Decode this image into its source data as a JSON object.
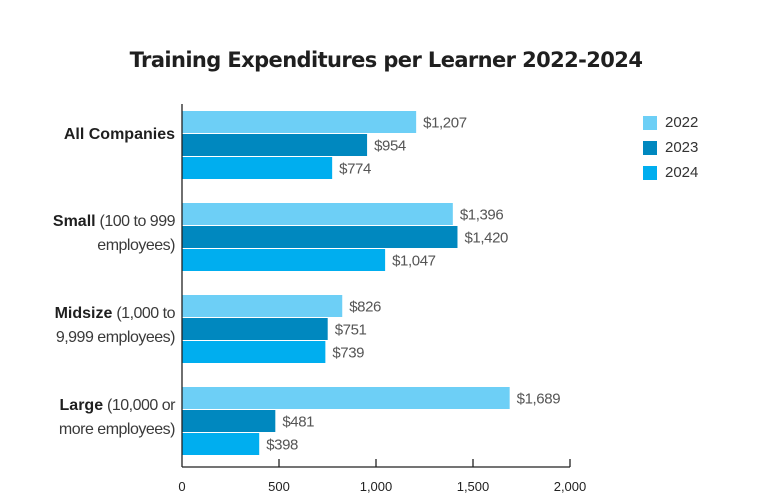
{
  "chart_data": {
    "type": "bar",
    "orientation": "horizontal",
    "title": "Training Expenditures per Learner 2022-2024",
    "categories": [
      {
        "bold": "All Companies",
        "line1_rest": "",
        "line2": ""
      },
      {
        "bold": "Small",
        "line1_rest": " (100 to 999",
        "line2": "employees)"
      },
      {
        "bold": "Midsize",
        "line1_rest": " (1,000 to",
        "line2": "9,999 employees)"
      },
      {
        "bold": "Large",
        "line1_rest": " (10,000 or",
        "line2": "more employees)"
      }
    ],
    "series": [
      {
        "name": "2022",
        "color": "#6dcff6",
        "values": [
          1207,
          1396,
          826,
          1689
        ],
        "labels": [
          "$1,207",
          "$1,396",
          "$826",
          "$1,689"
        ]
      },
      {
        "name": "2023",
        "color": "#0088bf",
        "values": [
          954,
          1420,
          751,
          481
        ],
        "labels": [
          "$954",
          "$1,420",
          "$751",
          "$481"
        ]
      },
      {
        "name": "2024",
        "color": "#00aeef",
        "values": [
          774,
          1047,
          739,
          398
        ],
        "labels": [
          "$774",
          "$1,047",
          "$739",
          "$398"
        ]
      }
    ],
    "xlim": [
      0,
      2000
    ],
    "xticks": [
      0,
      500,
      1000,
      1500,
      2000
    ],
    "xtick_labels": [
      "0",
      "500",
      "1,000",
      "1,500",
      "2,000"
    ],
    "xlabel": "",
    "ylabel": "",
    "grid": false,
    "legend": "top-right"
  }
}
